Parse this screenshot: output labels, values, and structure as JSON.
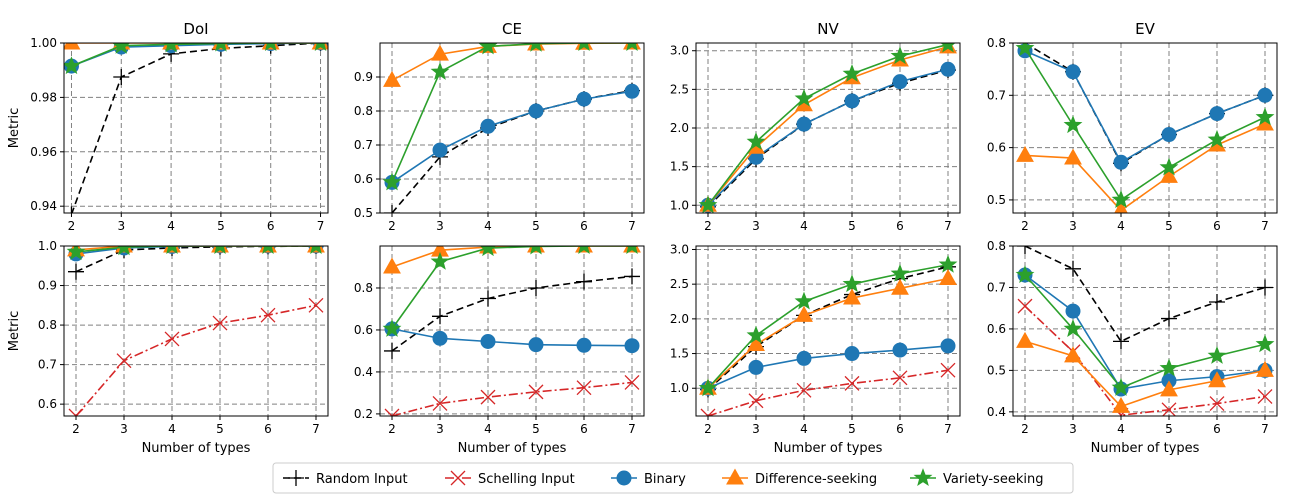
{
  "colors": {
    "random": "#000000",
    "schelling": "#d62728",
    "binary": "#1f77b4",
    "difference": "#ff7f0e",
    "variety": "#2ca02c",
    "grid": "#808080"
  },
  "legend": {
    "entries": [
      {
        "key": "random",
        "label": "Random Input"
      },
      {
        "key": "schelling",
        "label": "Schelling Input"
      },
      {
        "key": "binary",
        "label": "Binary"
      },
      {
        "key": "difference",
        "label": "Difference-seeking"
      },
      {
        "key": "variety",
        "label": "Variety-seeking"
      }
    ]
  },
  "chart_data": [
    {
      "type": "line",
      "title": "DoI",
      "xlabel": "",
      "ylabel": "Metric",
      "x": [
        2,
        3,
        4,
        5,
        6,
        7
      ],
      "xlim": [
        1.85,
        7.15
      ],
      "ylim": [
        0.9375,
        1.0
      ],
      "yticks": [
        0.94,
        0.96,
        0.98,
        1.0
      ],
      "ytick_labels": [
        "0.94",
        "0.96",
        "0.98",
        "1.00"
      ],
      "series": [
        {
          "key": "random",
          "name": "Random Input",
          "values": [
            0.937,
            0.9875,
            0.996,
            0.998,
            0.999,
            1.0
          ]
        },
        {
          "key": "binary",
          "name": "Binary",
          "values": [
            0.9915,
            0.9985,
            0.999,
            0.9995,
            0.9998,
            1.0
          ]
        },
        {
          "key": "difference",
          "name": "Difference-seeking",
          "values": [
            1.0,
            1.0,
            1.0,
            1.0,
            1.0,
            1.0
          ]
        },
        {
          "key": "variety",
          "name": "Variety-seeking",
          "values": [
            0.9915,
            0.999,
            0.9995,
            0.9998,
            1.0,
            1.0
          ]
        }
      ]
    },
    {
      "type": "line",
      "title": "CE",
      "xlabel": "",
      "ylabel": "",
      "x": [
        2,
        3,
        4,
        5,
        6,
        7
      ],
      "xlim": [
        1.75,
        7.25
      ],
      "ylim": [
        0.5,
        1.0
      ],
      "yticks": [
        0.5,
        0.6,
        0.7,
        0.8,
        0.9
      ],
      "ytick_labels": [
        "0.5",
        "0.6",
        "0.7",
        "0.8",
        "0.9"
      ],
      "series": [
        {
          "key": "random",
          "name": "Random Input",
          "values": [
            0.5,
            0.665,
            0.75,
            0.8,
            0.835,
            0.86
          ]
        },
        {
          "key": "binary",
          "name": "Binary",
          "values": [
            0.59,
            0.685,
            0.755,
            0.8,
            0.835,
            0.858
          ]
        },
        {
          "key": "difference",
          "name": "Difference-seeking",
          "values": [
            0.89,
            0.967,
            0.99,
            0.997,
            0.999,
            1.0
          ]
        },
        {
          "key": "variety",
          "name": "Variety-seeking",
          "values": [
            0.59,
            0.915,
            0.99,
            0.998,
            1.0,
            1.0
          ]
        }
      ]
    },
    {
      "type": "line",
      "title": "NV",
      "xlabel": "",
      "ylabel": "",
      "x": [
        2,
        3,
        4,
        5,
        6,
        7
      ],
      "xlim": [
        1.75,
        7.25
      ],
      "ylim": [
        0.9,
        3.1
      ],
      "yticks": [
        1.0,
        1.5,
        2.0,
        2.5,
        3.0
      ],
      "ytick_labels": [
        "1.0",
        "1.5",
        "2.0",
        "2.5",
        "3.0"
      ],
      "series": [
        {
          "key": "random",
          "name": "Random Input",
          "values": [
            0.98,
            1.6,
            2.05,
            2.35,
            2.58,
            2.75
          ]
        },
        {
          "key": "binary",
          "name": "Binary",
          "values": [
            1.0,
            1.62,
            2.05,
            2.35,
            2.6,
            2.76
          ]
        },
        {
          "key": "difference",
          "name": "Difference-seeking",
          "values": [
            1.0,
            1.75,
            2.3,
            2.65,
            2.88,
            3.05
          ]
        },
        {
          "key": "variety",
          "name": "Variety-seeking",
          "values": [
            1.0,
            1.82,
            2.38,
            2.7,
            2.93,
            3.08
          ]
        }
      ]
    },
    {
      "type": "line",
      "title": "EV",
      "xlabel": "",
      "ylabel": "",
      "x": [
        2,
        3,
        4,
        5,
        6,
        7
      ],
      "xlim": [
        1.75,
        7.25
      ],
      "ylim": [
        0.475,
        0.8
      ],
      "yticks": [
        0.5,
        0.6,
        0.7,
        0.8
      ],
      "ytick_labels": [
        "0.5",
        "0.6",
        "0.7",
        "0.8"
      ],
      "series": [
        {
          "key": "random",
          "name": "Random Input",
          "values": [
            0.8,
            0.745,
            0.57,
            0.625,
            0.665,
            0.7
          ]
        },
        {
          "key": "binary",
          "name": "Binary",
          "values": [
            0.785,
            0.745,
            0.572,
            0.625,
            0.665,
            0.7
          ]
        },
        {
          "key": "difference",
          "name": "Difference-seeking",
          "values": [
            0.585,
            0.58,
            0.48,
            0.545,
            0.605,
            0.645
          ]
        },
        {
          "key": "variety",
          "name": "Variety-seeking",
          "values": [
            0.79,
            0.643,
            0.5,
            0.562,
            0.615,
            0.658
          ]
        }
      ]
    },
    {
      "type": "line",
      "title": "",
      "xlabel": "Number of types",
      "ylabel": "Metric",
      "x": [
        2,
        3,
        4,
        5,
        6,
        7
      ],
      "xlim": [
        1.75,
        7.25
      ],
      "ylim": [
        0.57,
        1.0
      ],
      "yticks": [
        0.6,
        0.7,
        0.8,
        0.9,
        1.0
      ],
      "ytick_labels": [
        "0.6",
        "0.7",
        "0.8",
        "0.9",
        "1.0"
      ],
      "series": [
        {
          "key": "random",
          "name": "Random Input",
          "values": [
            0.935,
            0.99,
            0.995,
            0.998,
            0.999,
            1.0
          ]
        },
        {
          "key": "schelling",
          "name": "Schelling Input",
          "values": [
            0.57,
            0.71,
            0.765,
            0.805,
            0.825,
            0.85
          ]
        },
        {
          "key": "binary",
          "name": "Binary",
          "values": [
            0.98,
            0.995,
            0.999,
            1.0,
            1.0,
            1.0
          ]
        },
        {
          "key": "difference",
          "name": "Difference-seeking",
          "values": [
            0.99,
            1.0,
            1.0,
            1.0,
            1.0,
            1.0
          ]
        },
        {
          "key": "variety",
          "name": "Variety-seeking",
          "values": [
            0.985,
            0.997,
            1.0,
            1.0,
            1.0,
            1.0
          ]
        }
      ]
    },
    {
      "type": "line",
      "title": "",
      "xlabel": "Number of types",
      "ylabel": "",
      "x": [
        2,
        3,
        4,
        5,
        6,
        7
      ],
      "xlim": [
        1.75,
        7.25
      ],
      "ylim": [
        0.19,
        1.0
      ],
      "yticks": [
        0.2,
        0.4,
        0.6,
        0.8
      ],
      "ytick_labels": [
        "0.2",
        "0.4",
        "0.6",
        "0.8"
      ],
      "series": [
        {
          "key": "random",
          "name": "Random Input",
          "values": [
            0.5,
            0.665,
            0.75,
            0.8,
            0.83,
            0.855
          ]
        },
        {
          "key": "schelling",
          "name": "Schelling Input",
          "values": [
            0.19,
            0.25,
            0.28,
            0.305,
            0.325,
            0.35
          ]
        },
        {
          "key": "binary",
          "name": "Binary",
          "values": [
            0.605,
            0.56,
            0.545,
            0.53,
            0.527,
            0.525
          ]
        },
        {
          "key": "difference",
          "name": "Difference-seeking",
          "values": [
            0.9,
            0.98,
            0.995,
            1.0,
            1.0,
            1.0
          ]
        },
        {
          "key": "variety",
          "name": "Variety-seeking",
          "values": [
            0.605,
            0.925,
            0.99,
            0.998,
            1.0,
            1.0
          ]
        }
      ]
    },
    {
      "type": "line",
      "title": "",
      "xlabel": "Number of types",
      "ylabel": "",
      "x": [
        2,
        3,
        4,
        5,
        6,
        7
      ],
      "xlim": [
        1.75,
        7.25
      ],
      "ylim": [
        0.6,
        3.05
      ],
      "yticks": [
        1.0,
        1.5,
        2.0,
        2.5,
        3.0
      ],
      "ytick_labels": [
        "1.0",
        "1.5",
        "2.0",
        "2.5",
        "3.0"
      ],
      "series": [
        {
          "key": "random",
          "name": "Random Input",
          "values": [
            0.98,
            1.6,
            2.05,
            2.35,
            2.58,
            2.75
          ]
        },
        {
          "key": "schelling",
          "name": "Schelling Input",
          "values": [
            0.6,
            0.82,
            0.97,
            1.07,
            1.15,
            1.26
          ]
        },
        {
          "key": "binary",
          "name": "Binary",
          "values": [
            1.0,
            1.3,
            1.43,
            1.5,
            1.55,
            1.61
          ]
        },
        {
          "key": "difference",
          "name": "Difference-seeking",
          "values": [
            1.0,
            1.63,
            2.05,
            2.3,
            2.44,
            2.58
          ]
        },
        {
          "key": "variety",
          "name": "Variety-seeking",
          "values": [
            1.0,
            1.76,
            2.25,
            2.5,
            2.65,
            2.78
          ]
        }
      ]
    },
    {
      "type": "line",
      "title": "",
      "xlabel": "Number of types",
      "ylabel": "",
      "x": [
        2,
        3,
        4,
        5,
        6,
        7
      ],
      "xlim": [
        1.75,
        7.25
      ],
      "ylim": [
        0.39,
        0.8
      ],
      "yticks": [
        0.4,
        0.5,
        0.6,
        0.7,
        0.8
      ],
      "ytick_labels": [
        "0.4",
        "0.5",
        "0.6",
        "0.7",
        "0.8"
      ],
      "series": [
        {
          "key": "random",
          "name": "Random Input",
          "values": [
            0.8,
            0.745,
            0.57,
            0.625,
            0.665,
            0.7
          ]
        },
        {
          "key": "schelling",
          "name": "Schelling Input",
          "values": [
            0.655,
            0.545,
            0.392,
            0.405,
            0.42,
            0.437
          ]
        },
        {
          "key": "binary",
          "name": "Binary",
          "values": [
            0.73,
            0.643,
            0.455,
            0.475,
            0.485,
            0.5
          ]
        },
        {
          "key": "difference",
          "name": "Difference-seeking",
          "values": [
            0.57,
            0.535,
            0.413,
            0.453,
            0.475,
            0.5
          ]
        },
        {
          "key": "variety",
          "name": "Variety-seeking",
          "values": [
            0.73,
            0.6,
            0.458,
            0.505,
            0.535,
            0.563
          ]
        }
      ]
    }
  ]
}
